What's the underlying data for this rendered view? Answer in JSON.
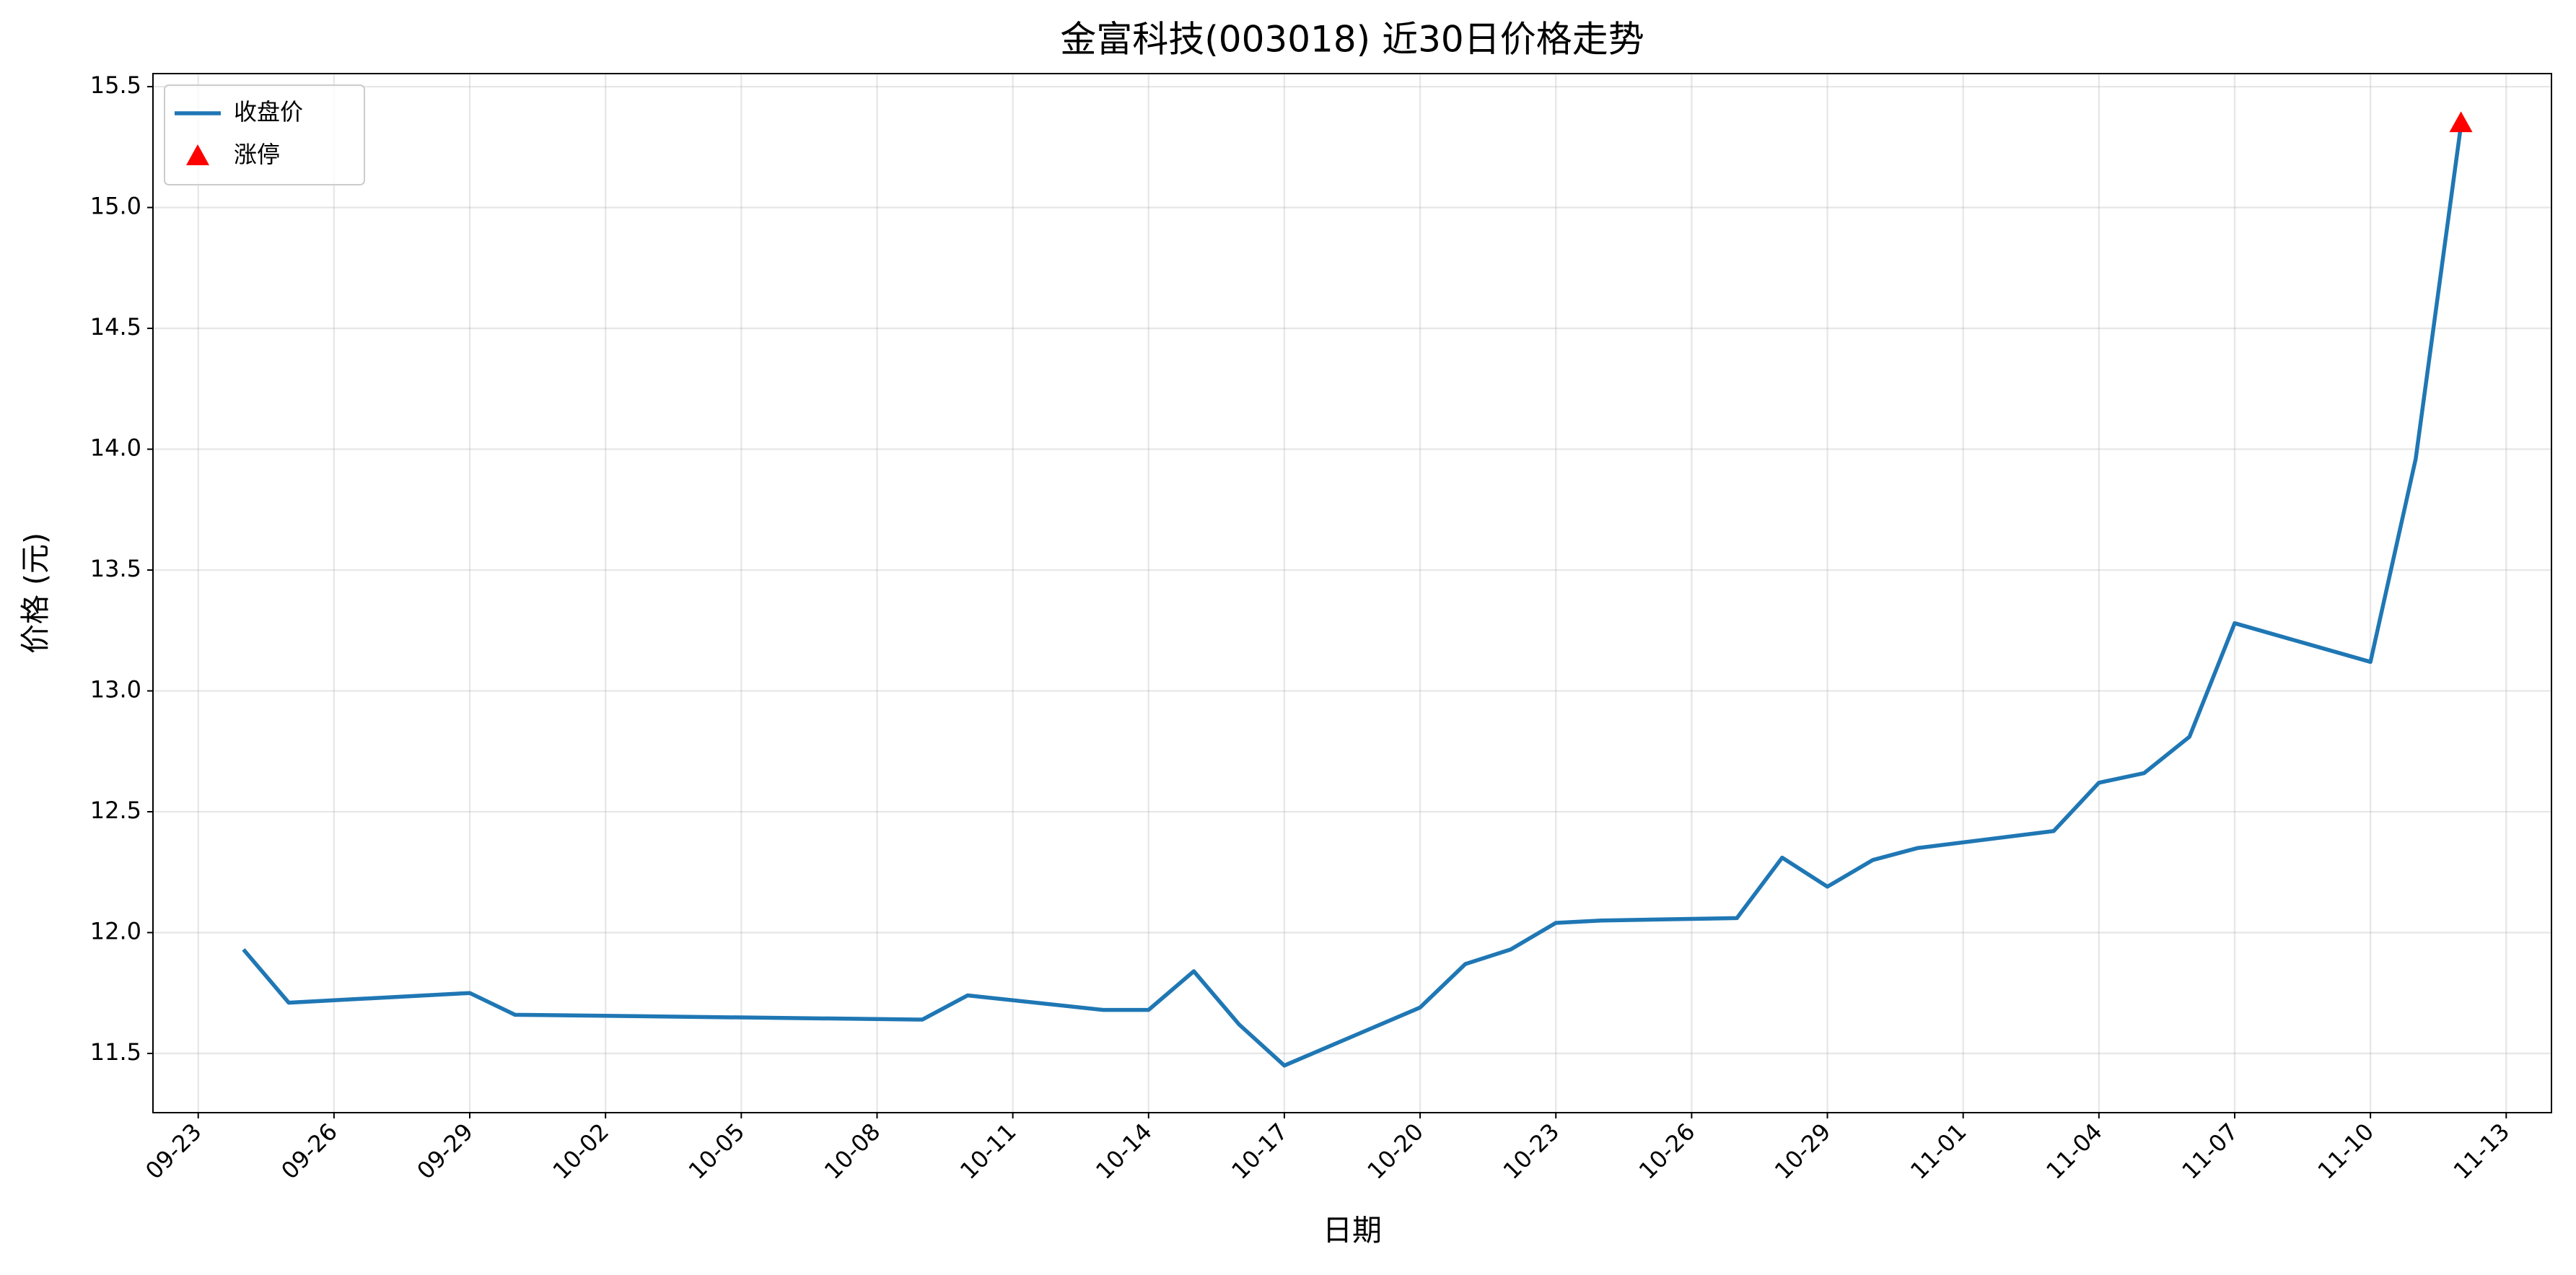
{
  "chart_data": {
    "type": "line",
    "title": "金富科技(003018) 近30日价格走势",
    "x_label": "日期",
    "y_label": "价格 (元)",
    "x": [
      "09-24",
      "09-25",
      "09-29",
      "09-30",
      "10-09",
      "10-10",
      "10-13",
      "10-14",
      "10-15",
      "10-16",
      "10-17",
      "10-20",
      "10-21",
      "10-22",
      "10-23",
      "10-24",
      "10-27",
      "10-28",
      "10-29",
      "10-30",
      "10-31",
      "11-03",
      "11-04",
      "11-05",
      "11-06",
      "11-07",
      "11-10",
      "11-11",
      "11-12"
    ],
    "series": [
      {
        "name": "收盘价",
        "color": "#1f77b4",
        "values": [
          11.93,
          11.71,
          11.75,
          11.66,
          11.64,
          11.74,
          11.68,
          11.68,
          11.84,
          11.62,
          11.45,
          11.69,
          11.87,
          11.93,
          12.04,
          12.05,
          12.06,
          12.31,
          12.19,
          12.3,
          12.35,
          12.42,
          12.62,
          12.66,
          12.81,
          13.28,
          13.12,
          13.96,
          15.34
        ]
      },
      {
        "name": "涨停",
        "color": "#ff0000",
        "type": "scatter",
        "x": [
          "11-12"
        ],
        "values": [
          15.35
        ]
      }
    ],
    "xlim": [
      "09-22",
      "11-14"
    ],
    "xticks": [
      "09-23",
      "09-26",
      "09-29",
      "10-02",
      "10-05",
      "10-08",
      "10-11",
      "10-14",
      "10-17",
      "10-20",
      "10-23",
      "10-26",
      "10-29",
      "11-01",
      "11-04",
      "11-07",
      "11-10",
      "11-13"
    ],
    "ylim": [
      11.255,
      15.554
    ],
    "yticks": [
      11.5,
      {
        "value": 12,
        "label": "12.0"
      },
      12.5,
      {
        "value": 13,
        "label": "13.0"
      },
      13.5,
      {
        "value": 14,
        "label": "14.0"
      },
      14.5,
      {
        "value": 15,
        "label": "15.0"
      },
      15.5
    ],
    "grid": true,
    "legend": "upper left"
  }
}
